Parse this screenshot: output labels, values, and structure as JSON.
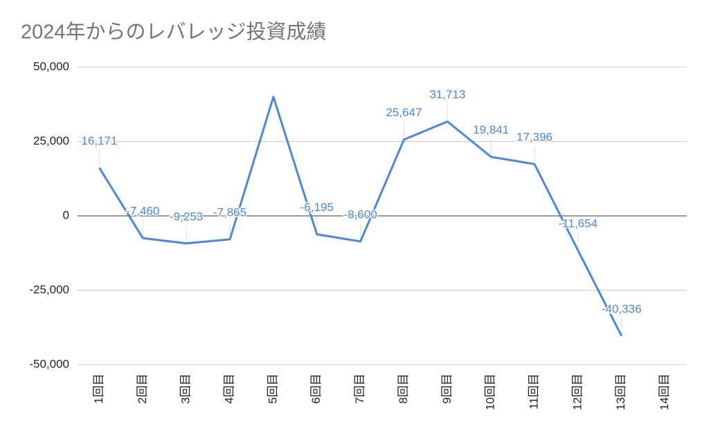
{
  "chart_data": {
    "type": "line",
    "title": "2024年からのレバレッジ投資成績",
    "categories": [
      "1回目",
      "2回目",
      "3回目",
      "4回目",
      "5回目",
      "6回目",
      "7回目",
      "8回目",
      "9回目",
      "10回目",
      "11回目",
      "12回目",
      "13回目",
      "14回目"
    ],
    "values": [
      16171,
      -7460,
      -9253,
      -7865,
      40000,
      -6195,
      -8600,
      25647,
      31713,
      19841,
      17396,
      -11654,
      -40336,
      null
    ],
    "value_labels": [
      "16,171",
      "-7,460",
      "-9,253",
      "-7,865",
      null,
      "-6,195",
      "-8,600",
      "25,647",
      "31,713",
      "19,841",
      "17,396",
      "-11,654",
      "-40,336",
      null
    ],
    "color": "#4a86e8",
    "ylim": [
      -50000,
      50000
    ],
    "yticks": [
      {
        "value": -50000,
        "label": "-50,000"
      },
      {
        "value": -25000,
        "label": "-25,000"
      },
      0,
      {
        "value": 25000,
        "label": "25,000"
      },
      {
        "value": 50000,
        "label": "50,000"
      }
    ],
    "grid": true
  }
}
